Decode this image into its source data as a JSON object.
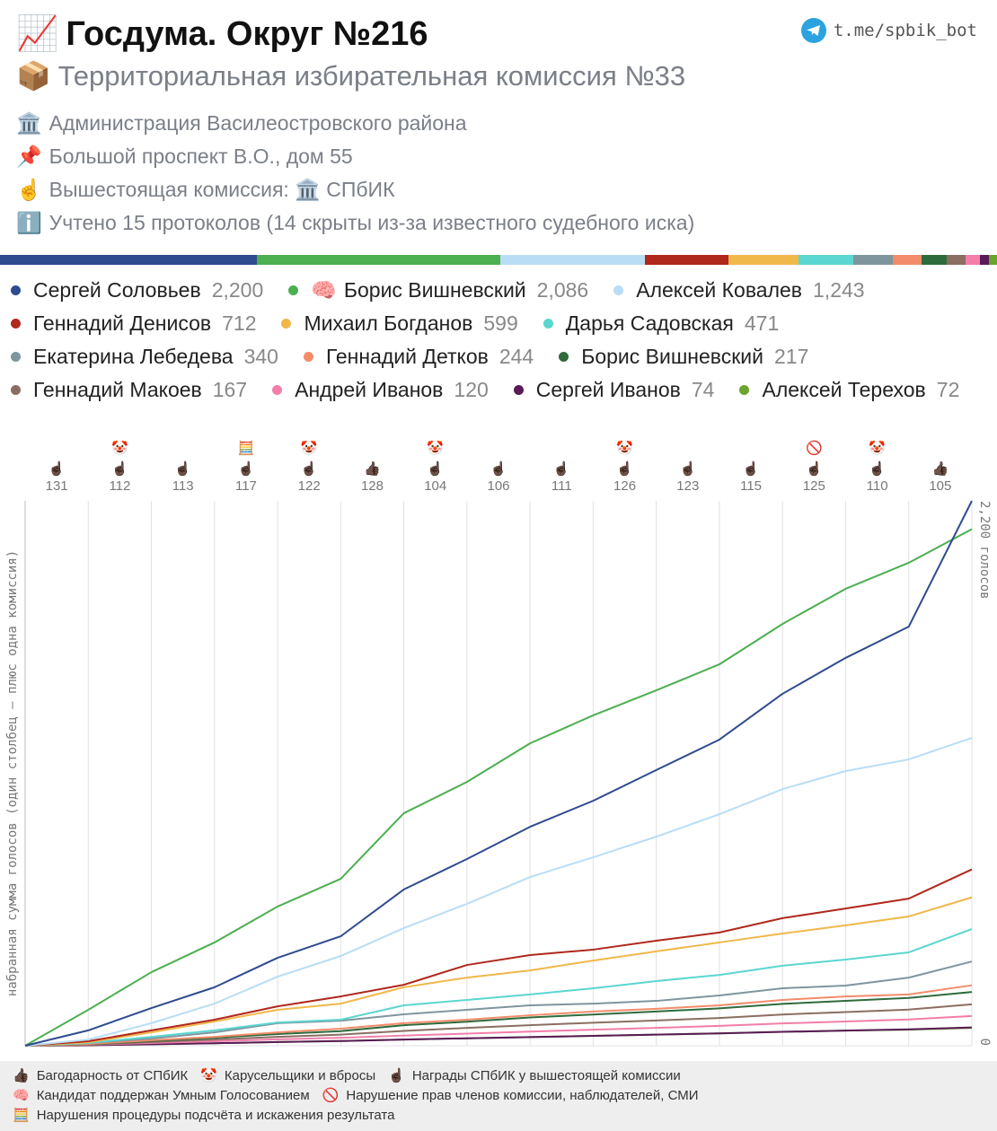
{
  "header": {
    "title_icon": "📈",
    "title": "Госдума. Округ №216",
    "link": "t.me/spbik_bot",
    "subtitle_icon": "📦",
    "subtitle": "Территориальная избирательная комиссия №33",
    "info": [
      {
        "icon": "🏛️",
        "text": "Администрация Василеостровского района"
      },
      {
        "icon": "📌",
        "text": "Большой проспект В.О., дом 55"
      },
      {
        "icon": "☝️",
        "text": "Вышестоящая комиссия: 🏛️ СПбИК"
      },
      {
        "icon": "ℹ️",
        "text": "Учтено 15 протоколов (14 скрыты из-за известного судебного иска)"
      }
    ]
  },
  "chart_data": {
    "type": "line",
    "cumulative": true,
    "y_label": "набранная сумма голосов (один столбец – плюс одна комиссия)",
    "ylim": [
      0,
      2200
    ],
    "yticks": [
      0,
      {
        "value": 2200,
        "label": "2,200 голосов"
      }
    ],
    "categories": [
      131,
      112,
      113,
      117,
      122,
      128,
      104,
      106,
      111,
      126,
      123,
      115,
      125,
      110,
      105
    ],
    "category_icons": [
      [
        "☝🏿"
      ],
      [
        "🤡",
        "☝🏿"
      ],
      [
        "☝🏿"
      ],
      [
        "🧮",
        "☝🏿"
      ],
      [
        "🤡",
        "☝🏿"
      ],
      [
        "👍🏿"
      ],
      [
        "🤡",
        "☝🏿"
      ],
      [
        "☝🏿"
      ],
      [
        "☝🏿"
      ],
      [
        "🤡",
        "☝🏿"
      ],
      [
        "☝🏿"
      ],
      [
        "☝🏿"
      ],
      [
        "🚫",
        "☝🏿"
      ],
      [
        "🤡",
        "☝🏿"
      ],
      [
        "👍🏿"
      ]
    ],
    "series": [
      {
        "name": "Сергей Соловьев",
        "color": "#2f4b8f",
        "total": 2200,
        "total_label": "2,200",
        "values": [
          62,
          90,
          84,
          119,
          87,
          189,
          123,
          130,
          105,
          124,
          123,
          185,
          145,
          126,
          508
        ]
      },
      {
        "name": "Борис Вишневский",
        "icon": "🧠",
        "color": "#4caf50",
        "total": 2086,
        "total_label": "2,086",
        "values": [
          145,
          152,
          120,
          145,
          112,
          265,
          126,
          156,
          113,
          101,
          105,
          163,
          142,
          105,
          136
        ]
      },
      {
        "name": "Алексей Ковалев",
        "color": "#b9ddf5",
        "total": 1243,
        "total_label": "1,243",
        "values": [
          25,
          66,
          79,
          109,
          83,
          113,
          98,
          108,
          80,
          83,
          91,
          101,
          73,
          47,
          87
        ]
      },
      {
        "name": "Геннадий Денисов",
        "color": "#b0281c",
        "total": 712,
        "values": [
          18,
          44,
          43,
          54,
          40,
          47,
          80,
          40,
          22,
          36,
          33,
          58,
          39,
          40,
          118
        ]
      },
      {
        "name": "Михаил Богданов",
        "color": "#f0b84a",
        "total": 599,
        "values": [
          14,
          40,
          44,
          47,
          25,
          66,
          39,
          29,
          40,
          37,
          36,
          36,
          33,
          36,
          77
        ]
      },
      {
        "name": "Дарья Садовская",
        "color": "#5bd6d0",
        "total": 471,
        "values": [
          11,
          25,
          26,
          32,
          11,
          58,
          22,
          22,
          25,
          29,
          25,
          37,
          25,
          29,
          94
        ]
      },
      {
        "name": "Екатерина Лебедева",
        "color": "#7f959e",
        "total": 340,
        "values": [
          11,
          18,
          25,
          37,
          10,
          26,
          18,
          18,
          7,
          11,
          22,
          29,
          11,
          32,
          65
        ]
      },
      {
        "name": "Геннадий Детков",
        "color": "#f28c6a",
        "total": 244,
        "values": [
          7,
          15,
          14,
          18,
          15,
          22,
          14,
          18,
          15,
          11,
          14,
          22,
          14,
          8,
          37
        ]
      },
      {
        "name": "Борис Вишневский",
        "color": "#2e6b3c",
        "total": 217,
        "values": [
          6,
          13,
          13,
          15,
          12,
          24,
          14,
          17,
          12,
          12,
          13,
          18,
          12,
          12,
          24
        ]
      },
      {
        "name": "Геннадий Макоев",
        "color": "#8a6e62",
        "total": 167,
        "values": [
          5,
          10,
          10,
          11,
          9,
          15,
          12,
          11,
          10,
          9,
          10,
          14,
          10,
          10,
          21
        ]
      },
      {
        "name": "Андрей Иванов",
        "color": "#f27ea9",
        "total": 120,
        "values": [
          4,
          7,
          7,
          8,
          6,
          9,
          8,
          8,
          8,
          7,
          8,
          10,
          8,
          8,
          14
        ]
      },
      {
        "name": "Сергей Иванов",
        "color": "#5a1a57",
        "total": 74,
        "values": [
          2,
          4,
          4,
          5,
          4,
          6,
          5,
          5,
          5,
          5,
          5,
          6,
          5,
          5,
          8
        ]
      },
      {
        "name": "Алексей Терехов",
        "color": "#6aa52c",
        "total": 72,
        "values": [
          2,
          4,
          4,
          5,
          4,
          6,
          5,
          5,
          5,
          5,
          5,
          6,
          5,
          4,
          7
        ]
      }
    ]
  },
  "footer": {
    "legend": [
      {
        "icon": "👍🏿",
        "text": "Багодарность от СПбИК"
      },
      {
        "icon": "🤡",
        "text": "Карусельщики и вбросы"
      },
      {
        "icon": "☝🏿",
        "text": "Награды СПбИК у вышестоящей комиссии"
      },
      {
        "icon": "🧠",
        "text": "Кандидат поддержан Умным Голосованием"
      },
      {
        "icon": "🚫",
        "text": "Нарушение прав членов комиссии, наблюдателей, СМИ"
      },
      {
        "icon": "🧮",
        "text": "Нарушения процедуры подсчёта и искажения результата"
      }
    ]
  }
}
